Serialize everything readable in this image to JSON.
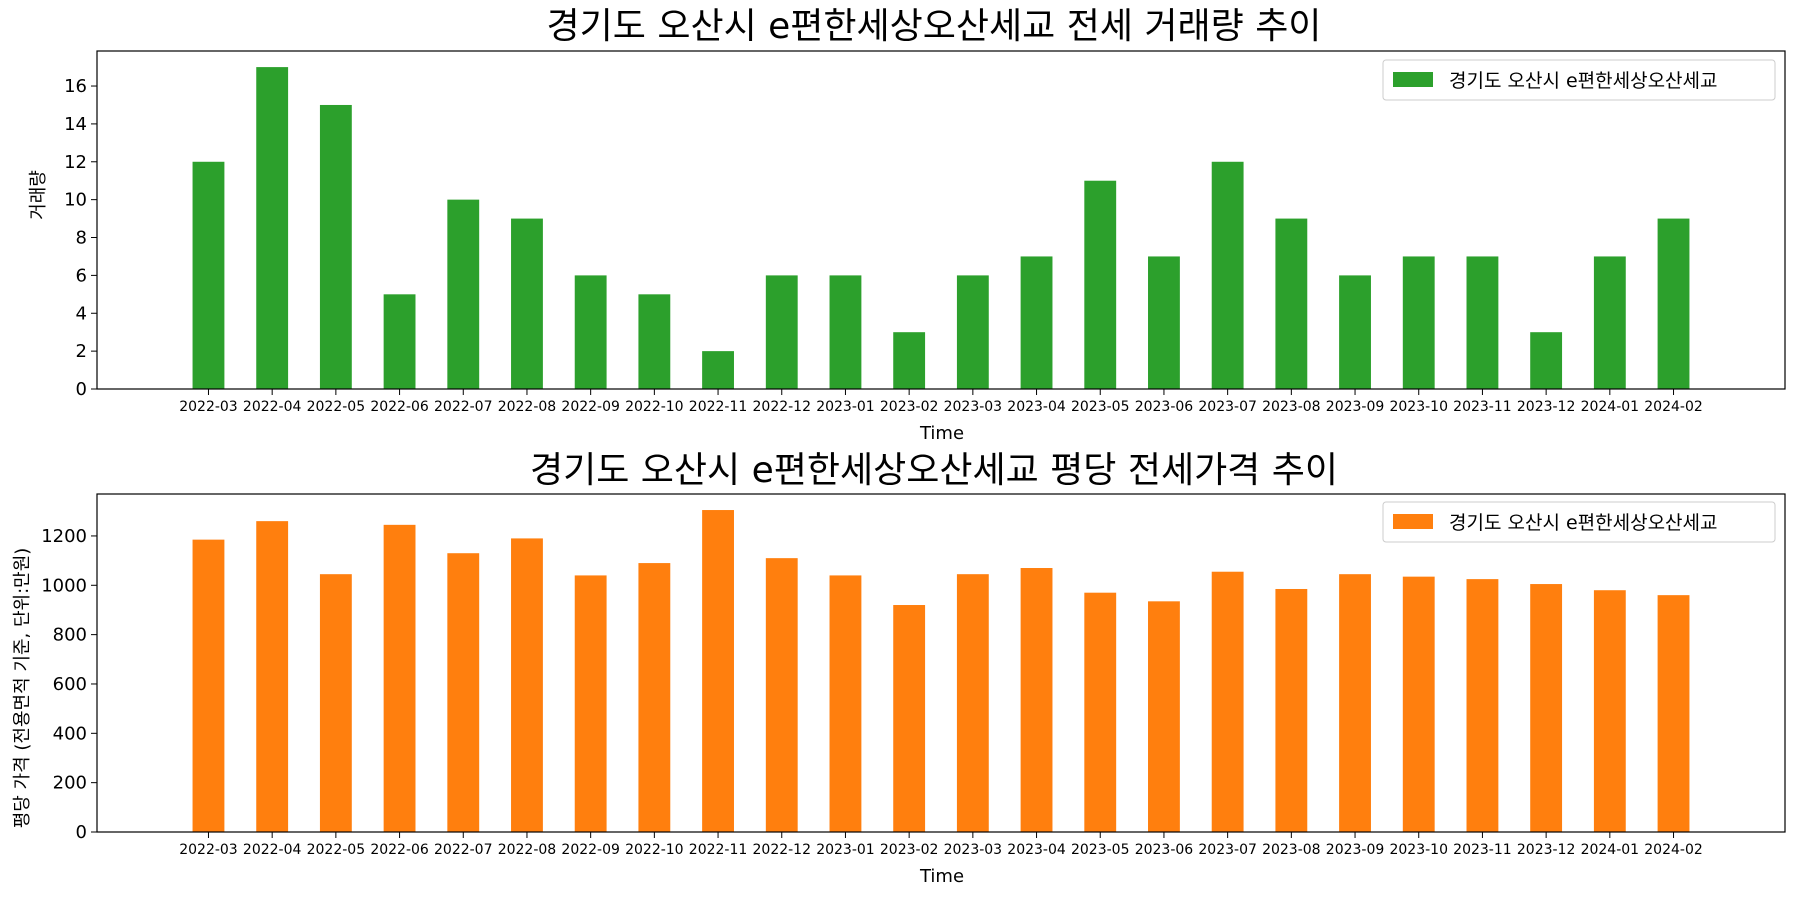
{
  "chart_data": [
    {
      "type": "bar",
      "title": "경기도 오산시 e편한세상오산세교 전세 거래량 추이",
      "xlabel": "Time",
      "ylabel": "거래량",
      "ylim": [
        0,
        17.85
      ],
      "yticks": [
        0,
        2,
        4,
        6,
        8,
        10,
        12,
        14,
        16
      ],
      "color": "#2ca02c",
      "legend_position": "top-right",
      "categories": [
        "2022-03",
        "2022-04",
        "2022-05",
        "2022-06",
        "2022-07",
        "2022-08",
        "2022-09",
        "2022-10",
        "2022-11",
        "2022-12",
        "2023-01",
        "2023-02",
        "2023-03",
        "2023-04",
        "2023-05",
        "2023-06",
        "2023-07",
        "2023-08",
        "2023-09",
        "2023-10",
        "2023-11",
        "2023-12",
        "2024-01",
        "2024-02"
      ],
      "series": [
        {
          "name": "경기도 오산시 e편한세상오산세교",
          "values": [
            12,
            17,
            15,
            5,
            10,
            9,
            6,
            5,
            2,
            6,
            6,
            3,
            6,
            7,
            11,
            7,
            12,
            9,
            6,
            7,
            7,
            3,
            7,
            9
          ]
        }
      ]
    },
    {
      "type": "bar",
      "title": "경기도 오산시 e편한세상오산세교 평당 전세가격 추이",
      "xlabel": "Time",
      "ylabel": "평당 가격 (전용면적 기준, 단위:만원)",
      "ylim": [
        0,
        1370
      ],
      "yticks": [
        0,
        200,
        400,
        600,
        800,
        1000,
        1200
      ],
      "color": "#ff7f0e",
      "legend_position": "top-right",
      "categories": [
        "2022-03",
        "2022-04",
        "2022-05",
        "2022-06",
        "2022-07",
        "2022-08",
        "2022-09",
        "2022-10",
        "2022-11",
        "2022-12",
        "2023-01",
        "2023-02",
        "2023-03",
        "2023-04",
        "2023-05",
        "2023-06",
        "2023-07",
        "2023-08",
        "2023-09",
        "2023-10",
        "2023-11",
        "2023-12",
        "2024-01",
        "2024-02"
      ],
      "series": [
        {
          "name": "경기도 오산시 e편한세상오산세교",
          "values": [
            1185,
            1260,
            1045,
            1245,
            1130,
            1190,
            1040,
            1090,
            1305,
            1110,
            1040,
            920,
            1045,
            1070,
            970,
            935,
            1055,
            985,
            1045,
            1035,
            1025,
            1005,
            980,
            960
          ]
        }
      ]
    }
  ]
}
